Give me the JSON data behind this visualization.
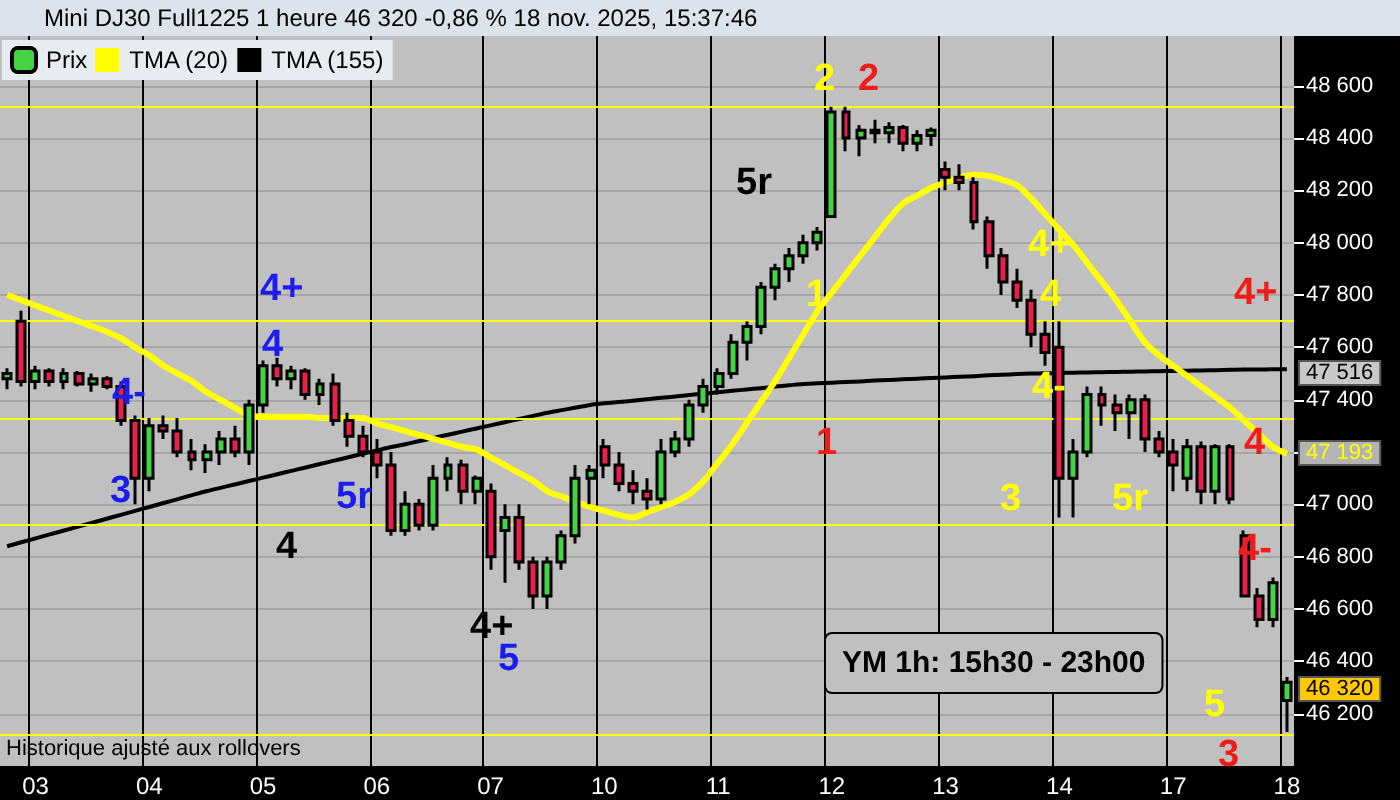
{
  "chart_data": {
    "type": "candlestick",
    "title": "Mini DJ30 Full1225 1 heure 46 320 -0,86 % 18 nov. 2025, 15:37:46",
    "categories": [
      null,
      null,
      "03",
      null,
      null,
      null,
      null,
      null,
      null,
      null,
      "04",
      null,
      null,
      null,
      null,
      null,
      null,
      null,
      "05",
      null,
      null,
      null,
      null,
      null,
      null,
      null,
      "06",
      null,
      null,
      null,
      null,
      null,
      null,
      null,
      "07",
      null,
      null,
      null,
      null,
      null,
      null,
      null,
      "10",
      null,
      null,
      null,
      null,
      null,
      null,
      null,
      "11",
      null,
      null,
      null,
      null,
      null,
      null,
      null,
      "12",
      null,
      null,
      null,
      null,
      null,
      null,
      null,
      "13",
      null,
      null,
      null,
      null,
      null,
      null,
      null,
      "14",
      null,
      null,
      null,
      null,
      null,
      null,
      null,
      "17",
      null,
      null,
      null,
      null,
      null,
      null,
      null,
      "18"
    ],
    "series": [
      {
        "name": "Prix",
        "color": "#44d544",
        "ohlc": [
          [
            47480,
            47520,
            47440,
            47500
          ],
          [
            47700,
            47740,
            47450,
            47470
          ],
          [
            47470,
            47530,
            47440,
            47510
          ],
          [
            47510,
            47520,
            47450,
            47470
          ],
          [
            47470,
            47520,
            47440,
            47500
          ],
          [
            47500,
            47510,
            47450,
            47460
          ],
          [
            47460,
            47500,
            47430,
            47480
          ],
          [
            47480,
            47490,
            47440,
            47450
          ],
          [
            47450,
            47470,
            47300,
            47320
          ],
          [
            47320,
            47340,
            47000,
            47100
          ],
          [
            47100,
            47330,
            47050,
            47300
          ],
          [
            47300,
            47340,
            47250,
            47280
          ],
          [
            47280,
            47330,
            47180,
            47200
          ],
          [
            47200,
            47250,
            47130,
            47170
          ],
          [
            47170,
            47230,
            47120,
            47200
          ],
          [
            47200,
            47280,
            47150,
            47250
          ],
          [
            47250,
            47300,
            47180,
            47200
          ],
          [
            47200,
            47400,
            47150,
            47380
          ],
          [
            47380,
            47550,
            47350,
            47530
          ],
          [
            47530,
            47560,
            47450,
            47480
          ],
          [
            47480,
            47530,
            47440,
            47510
          ],
          [
            47510,
            47520,
            47400,
            47420
          ],
          [
            47420,
            47480,
            47380,
            47460
          ],
          [
            47460,
            47500,
            47300,
            47320
          ],
          [
            47320,
            47350,
            47220,
            47260
          ],
          [
            47260,
            47300,
            47180,
            47200
          ],
          [
            47200,
            47250,
            47100,
            47150
          ],
          [
            47150,
            47200,
            46880,
            46900
          ],
          [
            46900,
            47050,
            46880,
            47000
          ],
          [
            47000,
            47020,
            46900,
            46920
          ],
          [
            46920,
            47150,
            46900,
            47100
          ],
          [
            47100,
            47180,
            47050,
            47150
          ],
          [
            47150,
            47170,
            47000,
            47050
          ],
          [
            47050,
            47110,
            47000,
            47100
          ],
          [
            47050,
            47080,
            46750,
            46800
          ],
          [
            46900,
            47000,
            46700,
            46950
          ],
          [
            46950,
            47000,
            46750,
            46780
          ],
          [
            46780,
            46800,
            46600,
            46650
          ],
          [
            46650,
            46800,
            46600,
            46780
          ],
          [
            46780,
            46900,
            46750,
            46880
          ],
          [
            46880,
            47150,
            46850,
            47100
          ],
          [
            47100,
            47150,
            47000,
            47130
          ],
          [
            47220,
            47250,
            47100,
            47150
          ],
          [
            47150,
            47200,
            47050,
            47080
          ],
          [
            47080,
            47130,
            47000,
            47050
          ],
          [
            47050,
            47100,
            46980,
            47020
          ],
          [
            47020,
            47250,
            47000,
            47200
          ],
          [
            47200,
            47280,
            47180,
            47250
          ],
          [
            47250,
            47400,
            47220,
            47380
          ],
          [
            47380,
            47480,
            47350,
            47450
          ],
          [
            47450,
            47520,
            47420,
            47500
          ],
          [
            47500,
            47650,
            47480,
            47620
          ],
          [
            47620,
            47700,
            47550,
            47680
          ],
          [
            47680,
            47850,
            47650,
            47830
          ],
          [
            47830,
            47920,
            47780,
            47900
          ],
          [
            47900,
            47980,
            47850,
            47950
          ],
          [
            47950,
            48030,
            47920,
            48000
          ],
          [
            48000,
            48060,
            47970,
            48040
          ],
          [
            48100,
            48520,
            48100,
            48500
          ],
          [
            48500,
            48520,
            48350,
            48400
          ],
          [
            48400,
            48450,
            48330,
            48430
          ],
          [
            48430,
            48470,
            48380,
            48420
          ],
          [
            48420,
            48460,
            48380,
            48440
          ],
          [
            48440,
            48450,
            48350,
            48380
          ],
          [
            48380,
            48430,
            48350,
            48410
          ],
          [
            48410,
            48440,
            48370,
            48430
          ],
          [
            48280,
            48310,
            48200,
            48250
          ],
          [
            48250,
            48300,
            48200,
            48230
          ],
          [
            48230,
            48250,
            48050,
            48080
          ],
          [
            48080,
            48100,
            47900,
            47950
          ],
          [
            47950,
            47980,
            47800,
            47850
          ],
          [
            47850,
            47900,
            47750,
            47780
          ],
          [
            47780,
            47820,
            47600,
            47650
          ],
          [
            47650,
            47700,
            47530,
            47580
          ],
          [
            47600,
            47700,
            46950,
            47100
          ],
          [
            47100,
            47250,
            46950,
            47200
          ],
          [
            47200,
            47450,
            47180,
            47420
          ],
          [
            47420,
            47450,
            47300,
            47380
          ],
          [
            47380,
            47420,
            47280,
            47350
          ],
          [
            47350,
            47420,
            47250,
            47400
          ],
          [
            47400,
            47420,
            47200,
            47250
          ],
          [
            47250,
            47280,
            47180,
            47200
          ],
          [
            47200,
            47250,
            47050,
            47150
          ],
          [
            47100,
            47250,
            47050,
            47220
          ],
          [
            47220,
            47240,
            47000,
            47050
          ],
          [
            47050,
            47230,
            47000,
            47220
          ],
          [
            47220,
            47230,
            47000,
            47020
          ],
          [
            46880,
            46900,
            46650,
            46650
          ],
          [
            46650,
            46680,
            46530,
            46560
          ],
          [
            46560,
            46720,
            46530,
            46700
          ],
          [
            46250,
            46340,
            46130,
            46320
          ]
        ],
        "colors": [
          "#44d544",
          "#e8204a",
          "#44d544",
          "#e8204a",
          "#44d544",
          "#e8204a",
          "#44d544",
          "#e8204a",
          "#e8204a",
          "#e8204a",
          "#44d544",
          "#e8204a",
          "#e8204a",
          "#e8204a",
          "#44d544",
          "#44d544",
          "#e8204a",
          "#44d544",
          "#44d544",
          "#e8204a",
          "#44d544",
          "#e8204a",
          "#44d544",
          "#e8204a",
          "#e8204a",
          "#e8204a",
          "#e8204a",
          "#e8204a",
          "#44d544",
          "#e8204a",
          "#44d544",
          "#44d544",
          "#e8204a",
          "#44d544",
          "#e8204a",
          "#44d544",
          "#e8204a",
          "#e8204a",
          "#44d544",
          "#44d544",
          "#44d544",
          "#44d544",
          "#e8204a",
          "#e8204a",
          "#e8204a",
          "#e8204a",
          "#44d544",
          "#44d544",
          "#44d544",
          "#44d544",
          "#44d544",
          "#44d544",
          "#44d544",
          "#44d544",
          "#44d544",
          "#44d544",
          "#44d544",
          "#44d544",
          "#44d544",
          "#e8204a",
          "#44d544",
          "#e8204a",
          "#44d544",
          "#e8204a",
          "#44d544",
          "#44d544",
          "#e8204a",
          "#e8204a",
          "#e8204a",
          "#e8204a",
          "#e8204a",
          "#e8204a",
          "#e8204a",
          "#e8204a",
          "#e8204a",
          "#44d544",
          "#44d544",
          "#e8204a",
          "#e8204a",
          "#44d544",
          "#e8204a",
          "#e8204a",
          "#e8204a",
          "#44d544",
          "#e8204a",
          "#44d544",
          "#e8204a",
          "#e8204a",
          "#e8204a",
          "#44d544",
          "#44d544"
        ]
      },
      {
        "name": "TMA (20)",
        "type": "line",
        "color": "#ffff00",
        "values": [
          47800,
          47780,
          47760,
          47740,
          47720,
          47700,
          47680,
          47660,
          47635,
          47600,
          47570,
          47530,
          47500,
          47470,
          47430,
          47400,
          47370,
          47340,
          47335,
          47335,
          47335,
          47335,
          47330,
          47330,
          47330,
          47330,
          47310,
          47295,
          47280,
          47265,
          47250,
          47235,
          47220,
          47210,
          47180,
          47150,
          47120,
          47090,
          47050,
          47030,
          47010,
          46990,
          46975,
          46960,
          46950,
          46970,
          46990,
          47010,
          47040,
          47090,
          47160,
          47230,
          47310,
          47390,
          47470,
          47560,
          47650,
          47740,
          47810,
          47880,
          47950,
          48020,
          48090,
          48150,
          48180,
          48210,
          48230,
          48250,
          48260,
          48255,
          48240,
          48220,
          48170,
          48110,
          48050,
          47990,
          47920,
          47850,
          47780,
          47700,
          47620,
          47570,
          47530,
          47490,
          47450,
          47410,
          47370,
          47320,
          47270,
          47220,
          47193
        ]
      },
      {
        "name": "TMA (155)",
        "type": "line",
        "color": "#000000",
        "values": [
          46840,
          46855,
          46870,
          46885,
          46900,
          46915,
          46930,
          46945,
          46960,
          46975,
          46990,
          47005,
          47020,
          47035,
          47050,
          47063,
          47076,
          47089,
          47102,
          47115,
          47128,
          47141,
          47154,
          47167,
          47180,
          47193,
          47206,
          47219,
          47230,
          47242,
          47254,
          47266,
          47278,
          47290,
          47302,
          47314,
          47326,
          47338,
          47350,
          47360,
          47370,
          47380,
          47386,
          47391,
          47396,
          47402,
          47407,
          47412,
          47418,
          47423,
          47428,
          47434,
          47439,
          47444,
          47450,
          47455,
          47460,
          47463,
          47465,
          47468,
          47470,
          47473,
          47475,
          47478,
          47480,
          47483,
          47485,
          47488,
          47490,
          47493,
          47495,
          47498,
          47500,
          47501,
          47502,
          47503,
          47504,
          47505,
          47506,
          47507,
          47508,
          47509,
          47510,
          47511,
          47512,
          47513,
          47514,
          47515,
          47515,
          47516,
          47516
        ]
      }
    ],
    "ylim": [
      46000,
      48790
    ],
    "yticks": [
      {
        "value": 46200,
        "label": "46 200"
      },
      {
        "value": 46400,
        "label": "46 400"
      },
      {
        "value": 46600,
        "label": "46 600"
      },
      {
        "value": 46800,
        "label": "46 800"
      },
      {
        "value": 47000,
        "label": "47 000"
      },
      {
        "value": 47200,
        "label": null
      },
      {
        "value": 47400,
        "label": "47 400"
      },
      {
        "value": 47600,
        "label": "47 600"
      },
      {
        "value": 47800,
        "label": "47 800"
      },
      {
        "value": 48000,
        "label": "48 000"
      },
      {
        "value": 48200,
        "label": "48 200"
      },
      {
        "value": 48400,
        "label": "48 400"
      },
      {
        "value": 48600,
        "label": "48 600"
      }
    ],
    "grid": true,
    "legend": "top left",
    "ref_lines": [
      {
        "axis": "y",
        "value": 48523,
        "color": "#ffff00"
      },
      {
        "axis": "y",
        "value": 47703,
        "color": "#ffff00"
      },
      {
        "axis": "y",
        "value": 47327,
        "color": "#ffff00"
      },
      {
        "axis": "y",
        "value": 46921,
        "color": "#ffff00"
      },
      {
        "axis": "y",
        "value": 46124,
        "color": "#ffff00"
      }
    ],
    "annotations": [
      "YM 1h: 15h30 - 23h00",
      "Historique ajusté aux rollovers",
      "4-",
      "3",
      "4+",
      "4",
      "5r",
      "4",
      "4+",
      "5",
      "5r",
      "2",
      "2",
      "1",
      "1",
      "4+",
      "4",
      "4-",
      "3",
      "5r",
      "4+",
      "4",
      "4-",
      "5",
      "3",
      "47 516",
      "47 193",
      "46 320"
    ]
  }
}
